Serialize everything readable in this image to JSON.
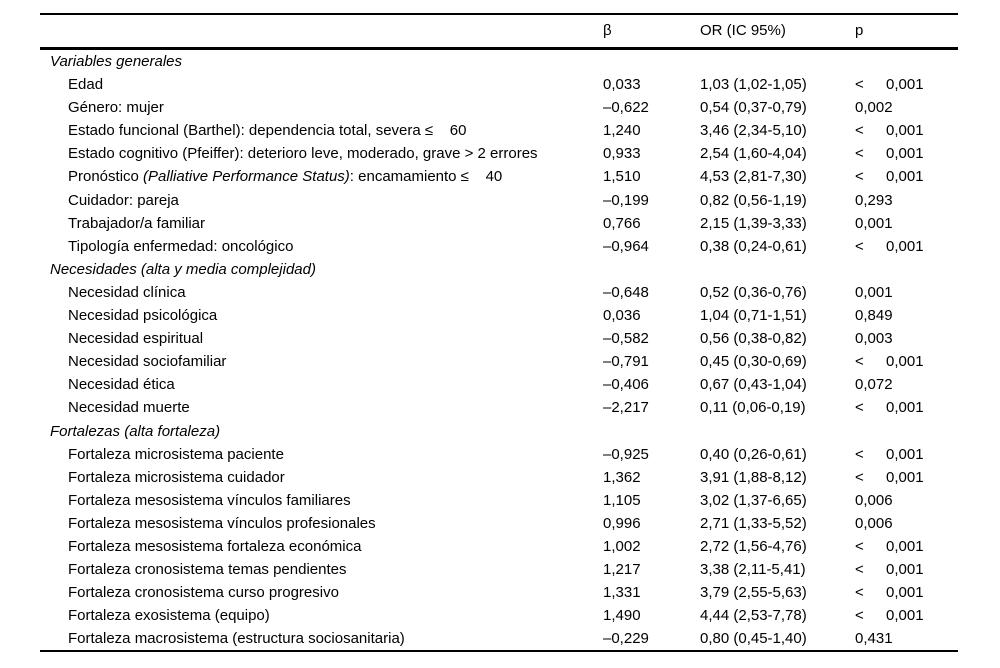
{
  "page": {
    "background_color": "#ffffff",
    "text_color": "#000000"
  },
  "table": {
    "columns": [
      {
        "key": "beta",
        "label": "β"
      },
      {
        "key": "or",
        "label": "OR (IC 95%)"
      },
      {
        "key": "p",
        "label": "p"
      }
    ],
    "sections": [
      {
        "header": "Variables generales",
        "rows": [
          {
            "label": "Edad",
            "beta": "0,033",
            "or": "1,03 (1,02-1,05)",
            "p": "< 0,001"
          },
          {
            "label": "Género: mujer",
            "beta": "–0,622",
            "or": "0,54 (0,37-0,79)",
            "p": "0,002"
          },
          {
            "label": "Estado funcional (Barthel): dependencia total, severa ≤    60",
            "beta": "1,240",
            "or": "3,46 (2,34-5,10)",
            "p": "< 0,001"
          },
          {
            "label": "Estado cognitivo (Pfeiffer): deterioro leve, moderado, grave > 2 errores",
            "beta": "0,933",
            "or": "2,54 (1,60-4,04)",
            "p": "< 0,001"
          },
          {
            "label_parts": [
              {
                "text": "Pronóstico ",
                "italic": false
              },
              {
                "text": "(Palliative Performance Status)",
                "italic": true
              },
              {
                "text": ": encamamiento ≤    40",
                "italic": false
              }
            ],
            "beta": "1,510",
            "or": "4,53 (2,81-7,30)",
            "p": "< 0,001"
          },
          {
            "label": "Cuidador: pareja",
            "beta": "–0,199",
            "or": "0,82 (0,56-1,19)",
            "p": "0,293"
          },
          {
            "label": "Trabajador/a familiar",
            "beta": "0,766",
            "or": "2,15 (1,39-3,33)",
            "p": "0,001"
          },
          {
            "label": "Tipología enfermedad: oncológico",
            "beta": "–0,964",
            "or": "0,38 (0,24-0,61)",
            "p": "< 0,001"
          }
        ]
      },
      {
        "header": "Necesidades (alta y media complejidad)",
        "rows": [
          {
            "label": "Necesidad clínica",
            "beta": "–0,648",
            "or": "0,52 (0,36-0,76)",
            "p": "0,001"
          },
          {
            "label": "Necesidad psicológica",
            "beta": "0,036",
            "or": "1,04 (0,71-1,51)",
            "p": "0,849"
          },
          {
            "label": "Necesidad espiritual",
            "beta": "–0,582",
            "or": "0,56 (0,38-0,82)",
            "p": "0,003"
          },
          {
            "label": "Necesidad sociofamiliar",
            "beta": "–0,791",
            "or": "0,45 (0,30-0,69)",
            "p": "< 0,001"
          },
          {
            "label": "Necesidad ética",
            "beta": "–0,406",
            "or": "0,67 (0,43-1,04)",
            "p": "0,072"
          },
          {
            "label": "Necesidad muerte",
            "beta": "–2,217",
            "or": "0,11 (0,06-0,19)",
            "p": "< 0,001"
          }
        ]
      },
      {
        "header": "Fortalezas (alta fortaleza)",
        "rows": [
          {
            "label": "Fortaleza microsistema paciente",
            "beta": "–0,925",
            "or": "0,40 (0,26-0,61)",
            "p": "< 0,001"
          },
          {
            "label": "Fortaleza microsistema cuidador",
            "beta": "1,362",
            "or": "3,91 (1,88-8,12)",
            "p": "< 0,001"
          },
          {
            "label": "Fortaleza mesosistema vínculos familiares",
            "beta": "1,105",
            "or": "3,02 (1,37-6,65)",
            "p": "0,006"
          },
          {
            "label": "Fortaleza mesosistema vínculos profesionales",
            "beta": "0,996",
            "or": "2,71 (1,33-5,52)",
            "p": "0,006"
          },
          {
            "label": "Fortaleza mesosistema fortaleza económica",
            "beta": "1,002",
            "or": "2,72 (1,56-4,76)",
            "p": "< 0,001"
          },
          {
            "label": "Fortaleza cronosistema temas pendientes",
            "beta": "1,217",
            "or": "3,38 (2,11-5,41)",
            "p": "< 0,001"
          },
          {
            "label": "Fortaleza cronosistema curso progresivo",
            "beta": "1,331",
            "or": "3,79 (2,55-5,63)",
            "p": "< 0,001"
          },
          {
            "label": "Fortaleza exosistema (equipo)",
            "beta": "1,490",
            "or": "4,44 (2,53-7,78)",
            "p": "< 0,001"
          },
          {
            "label": "Fortaleza macrosistema (estructura sociosanitaria)",
            "beta": "–0,229",
            "or": "0,80 (0,45-1,40)",
            "p": "0,431"
          }
        ]
      }
    ]
  }
}
